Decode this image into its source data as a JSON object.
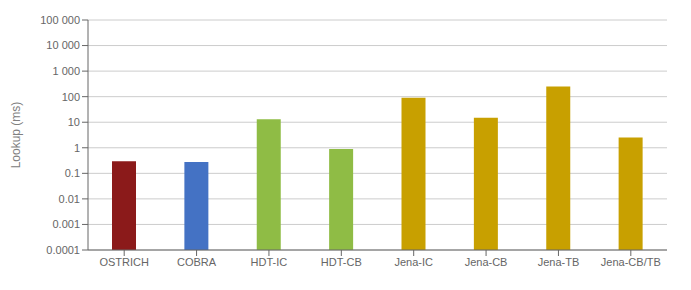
{
  "chart_data": {
    "type": "bar",
    "categories": [
      "OSTRICH",
      "COBRA",
      "HDT-IC",
      "HDT-CB",
      "Jena-IC",
      "Jena-CB",
      "Jena-TB",
      "Jena-CB/TB"
    ],
    "values": [
      0.3,
      0.28,
      13.0,
      0.9,
      90.0,
      15.0,
      250.0,
      2.5
    ],
    "colors": [
      "#8B1A1A",
      "#4472C4",
      "#8FBC45",
      "#8FBC45",
      "#C8A000",
      "#C8A000",
      "#C8A000",
      "#C8A000"
    ],
    "y_label": "Lookup (ms)",
    "log": "y",
    "ylim": [
      0.0001,
      100000
    ],
    "yticks": [
      0.0001,
      0.001,
      0.01,
      0.1,
      1,
      10,
      100,
      {
        "value": 1000,
        "label": "1 000"
      },
      {
        "value": 10000,
        "label": "10 000"
      },
      {
        "value": 100000,
        "label": "100 000"
      }
    ],
    "grid": true
  }
}
